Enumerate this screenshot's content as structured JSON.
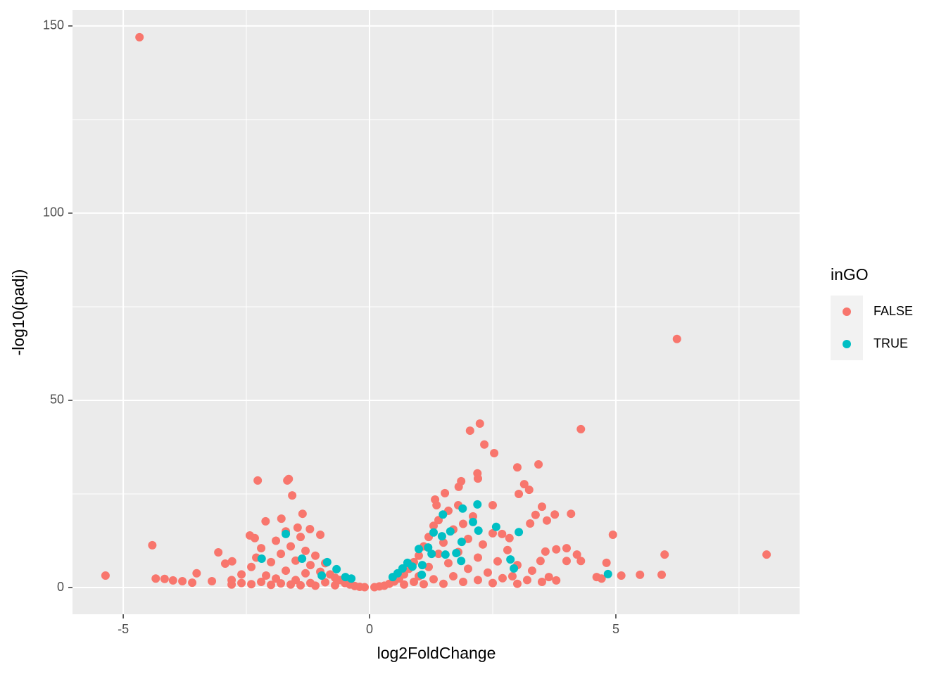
{
  "chart_data": {
    "type": "scatter",
    "x_label": "log2FoldChange",
    "y_label": "-log10(padj)",
    "legend_title": "inGO",
    "legend": "right",
    "grid": true,
    "xlim": [
      -6.03,
      8.73
    ],
    "ylim": [
      -7.14,
      154.3
    ],
    "xticks": [
      -5,
      0,
      5
    ],
    "yticks": [
      0,
      50,
      100,
      150
    ],
    "xminor": [
      -2.5,
      2.5,
      7.5
    ],
    "yminor": [
      25,
      75,
      125
    ],
    "series": [
      {
        "name": "FALSE",
        "color": "#F8766D",
        "x": [
          -4.67,
          6.24,
          -5.36,
          -4.41,
          -4.34,
          -4.16,
          -3.99,
          -3.8,
          -3.6,
          -3.51,
          -3.2,
          -3.07,
          -2.93,
          -2.79,
          -2.27,
          -2.11,
          -2.43,
          -2.33,
          -1.67,
          -1.64,
          -1.57,
          -1.79,
          -1.36,
          -1.46,
          -1.21,
          -1.0,
          2.04,
          2.24,
          2.33,
          2.53,
          2.19,
          2.2,
          1.86,
          1.81,
          1.53,
          1.33,
          1.36,
          3.0,
          3.43,
          3.14,
          3.24,
          3.03,
          4.29,
          3.5,
          3.37,
          3.76,
          4.09,
          3.6,
          3.26,
          2.5,
          2.69,
          2.84,
          4.94,
          4.0,
          3.79,
          3.57,
          4.21,
          4.29,
          4.0,
          3.47,
          4.81,
          5.99,
          8.06,
          5.93,
          5.49,
          5.11,
          4.61,
          4.71,
          3.79,
          3.64,
          -2.8,
          -2.8,
          -2.6,
          -2.6,
          -2.4,
          -2.4,
          -2.3,
          -2.2,
          -2.2,
          -2.1,
          -2.0,
          -2.0,
          -1.9,
          -1.9,
          -1.8,
          -1.8,
          -1.7,
          -1.7,
          -1.6,
          -1.6,
          -1.5,
          -1.5,
          -1.4,
          -1.4,
          -1.3,
          -1.3,
          -1.2,
          -1.2,
          -1.1,
          -1.1,
          -1.0,
          -0.9,
          -0.9,
          -0.8,
          -0.7,
          -0.7,
          -0.6,
          -0.5,
          -0.4,
          -0.3,
          -0.2,
          -0.1,
          0.1,
          0.2,
          0.3,
          0.4,
          0.5,
          0.6,
          0.7,
          0.7,
          0.8,
          0.9,
          0.9,
          1.0,
          1.0,
          1.1,
          1.1,
          1.2,
          1.2,
          1.3,
          1.3,
          1.4,
          1.4,
          1.5,
          1.5,
          1.6,
          1.6,
          1.7,
          1.7,
          1.8,
          1.8,
          1.9,
          1.9,
          2.0,
          2.0,
          2.1,
          2.2,
          2.2,
          2.3,
          2.4,
          2.5,
          2.5,
          2.6,
          2.7,
          2.8,
          2.9,
          3.0,
          3.0,
          3.2,
          3.3,
          3.5
        ],
        "y": [
          147,
          66.4,
          3.2,
          11.3,
          2.4,
          2.3,
          1.9,
          1.7,
          1.3,
          3.8,
          1.7,
          9.4,
          6.4,
          7.0,
          28.6,
          17.7,
          13.9,
          13.2,
          28.6,
          29,
          24.6,
          18.4,
          19.7,
          16,
          15.6,
          14.1,
          41.9,
          43.8,
          38.2,
          35.9,
          30.5,
          29.1,
          28.4,
          26.9,
          25.2,
          23.5,
          22,
          32.1,
          32.9,
          27.6,
          26.1,
          25,
          42.3,
          21.6,
          19.4,
          19.5,
          19.7,
          17.9,
          17.1,
          22,
          14.3,
          13.2,
          14.1,
          10.5,
          10.2,
          9.6,
          8.8,
          7.1,
          7.1,
          7.1,
          6.6,
          8.8,
          8.8,
          3.4,
          3.4,
          3.2,
          2.8,
          2.4,
          1.9,
          2.8,
          0.8,
          2.0,
          1.2,
          3.5,
          0.9,
          5.5,
          8.0,
          1.5,
          10.5,
          3.2,
          0.7,
          6.8,
          12.5,
          2.4,
          9.0,
          1.1,
          15.0,
          4.5,
          0.8,
          11.0,
          7.2,
          2.0,
          13.5,
          0.6,
          9.8,
          3.8,
          6.0,
          1.2,
          8.5,
          0.5,
          4.2,
          6.5,
          1.4,
          3.5,
          2.6,
          0.6,
          2.0,
          1.2,
          0.8,
          0.4,
          0.2,
          0.1,
          0.1,
          0.3,
          0.5,
          1.0,
          1.6,
          2.4,
          3.5,
          0.8,
          5.0,
          6.8,
          1.5,
          8.5,
          3.0,
          11.0,
          0.9,
          13.5,
          5.5,
          16.5,
          2.2,
          9.0,
          18.0,
          12.0,
          1.0,
          20.5,
          6.5,
          15.5,
          3.0,
          22.0,
          9.5,
          17.0,
          1.5,
          13.0,
          5.0,
          19.0,
          8.0,
          2.0,
          11.5,
          4.0,
          14.5,
          1.2,
          7.0,
          2.5,
          10.0,
          3.0,
          1.0,
          6.0,
          2.0,
          4.5,
          1.5
        ]
      },
      {
        "name": "TRUE",
        "color": "#00BFC4",
        "x": [
          -2.19,
          -1.7,
          -1.37,
          -0.86,
          -0.67,
          -0.97,
          -0.49,
          -0.37,
          0.47,
          0.57,
          0.67,
          0.77,
          0.87,
          1.0,
          1.07,
          1.06,
          1.19,
          1.26,
          1.3,
          1.49,
          1.47,
          1.64,
          1.54,
          1.76,
          1.87,
          1.89,
          1.86,
          2.1,
          2.19,
          2.21,
          2.57,
          3.03,
          2.86,
          2.93,
          4.84
        ],
        "y": [
          7.7,
          14.3,
          7.7,
          6.8,
          4.9,
          3.2,
          2.8,
          2.4,
          2.8,
          3.8,
          5.1,
          6.6,
          5.6,
          10.3,
          6.0,
          3.4,
          10.7,
          9.0,
          14.7,
          19.5,
          13.7,
          15,
          8.8,
          9.2,
          12.2,
          21.1,
          7.1,
          17.5,
          22.2,
          15.2,
          16.2,
          14.8,
          7.5,
          5.1,
          3.6
        ]
      }
    ]
  }
}
